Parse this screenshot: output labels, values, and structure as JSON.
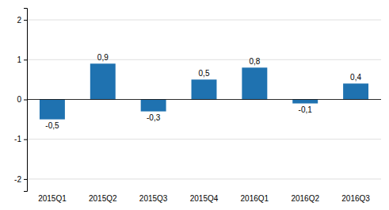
{
  "chart_data": {
    "type": "bar",
    "categories": [
      "2015Q1",
      "2015Q2",
      "2015Q3",
      "2015Q4",
      "2016Q1",
      "2016Q2",
      "2016Q3"
    ],
    "values": [
      -0.5,
      0.9,
      -0.3,
      0.5,
      0.8,
      -0.1,
      0.4
    ],
    "value_labels": [
      "-0,5",
      "0,9",
      "-0,3",
      "0,5",
      "0,8",
      "-0,1",
      "0,4"
    ],
    "data_labels": true,
    "color": "#1f72b0",
    "ylim": [
      -2.3,
      2.3
    ],
    "yticks": [
      -2,
      -1,
      0,
      1,
      2
    ],
    "grid": true
  }
}
